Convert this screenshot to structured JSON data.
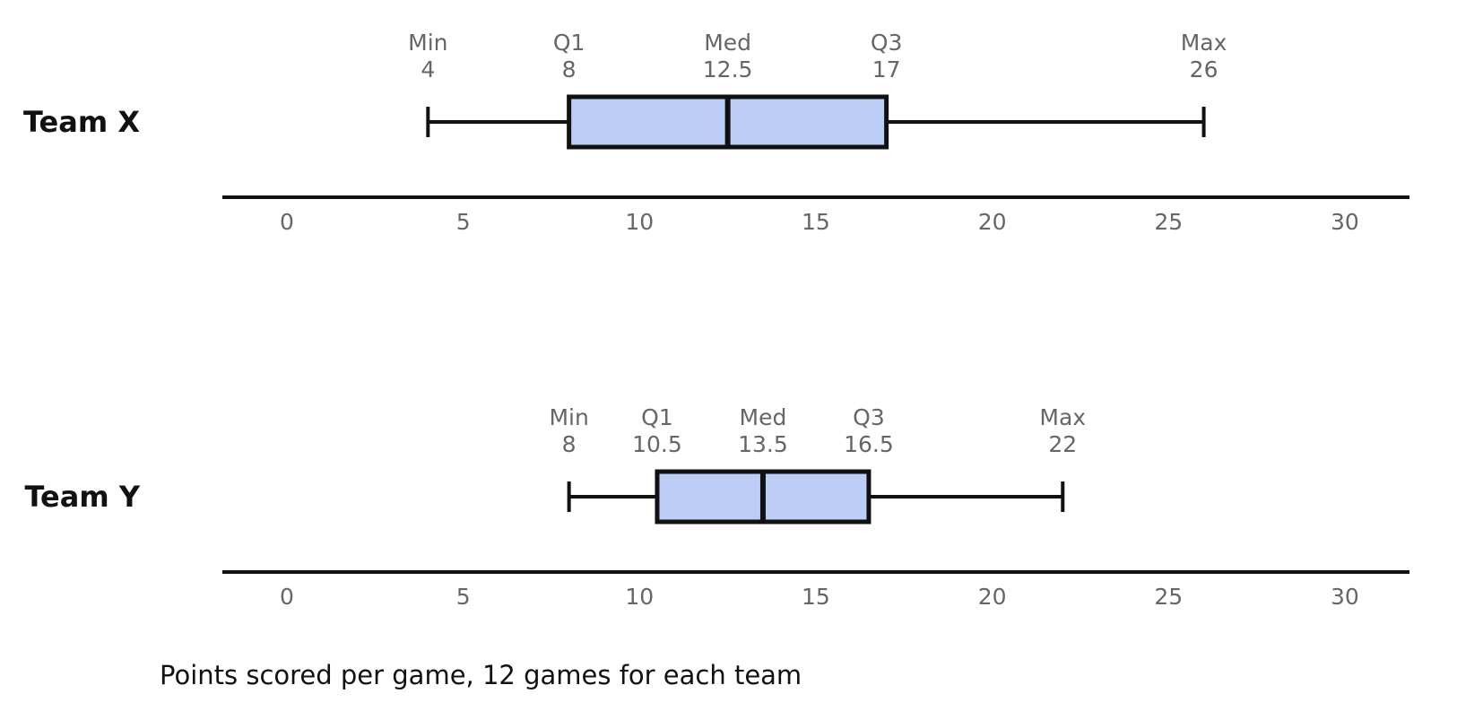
{
  "chart_data": {
    "type": "boxplot",
    "caption": "Points scored per game, 12 games for each team",
    "colors": {
      "box_fill": "#bccef5",
      "stroke": "#111111",
      "label_text": "#666666"
    },
    "xlim": [
      -1.8,
      32
    ],
    "xticks": [
      0,
      5,
      10,
      15,
      20,
      25,
      30
    ],
    "stat_names": {
      "min": "Min",
      "q1": "Q1",
      "median": "Med",
      "q3": "Q3",
      "max": "Max"
    },
    "series": [
      {
        "name": "Team X",
        "min": 4,
        "q1": 8,
        "median": 12.5,
        "q3": 17,
        "max": 26
      },
      {
        "name": "Team Y",
        "min": 8,
        "q1": 10.5,
        "median": 13.5,
        "q3": 16.5,
        "max": 22
      }
    ]
  }
}
